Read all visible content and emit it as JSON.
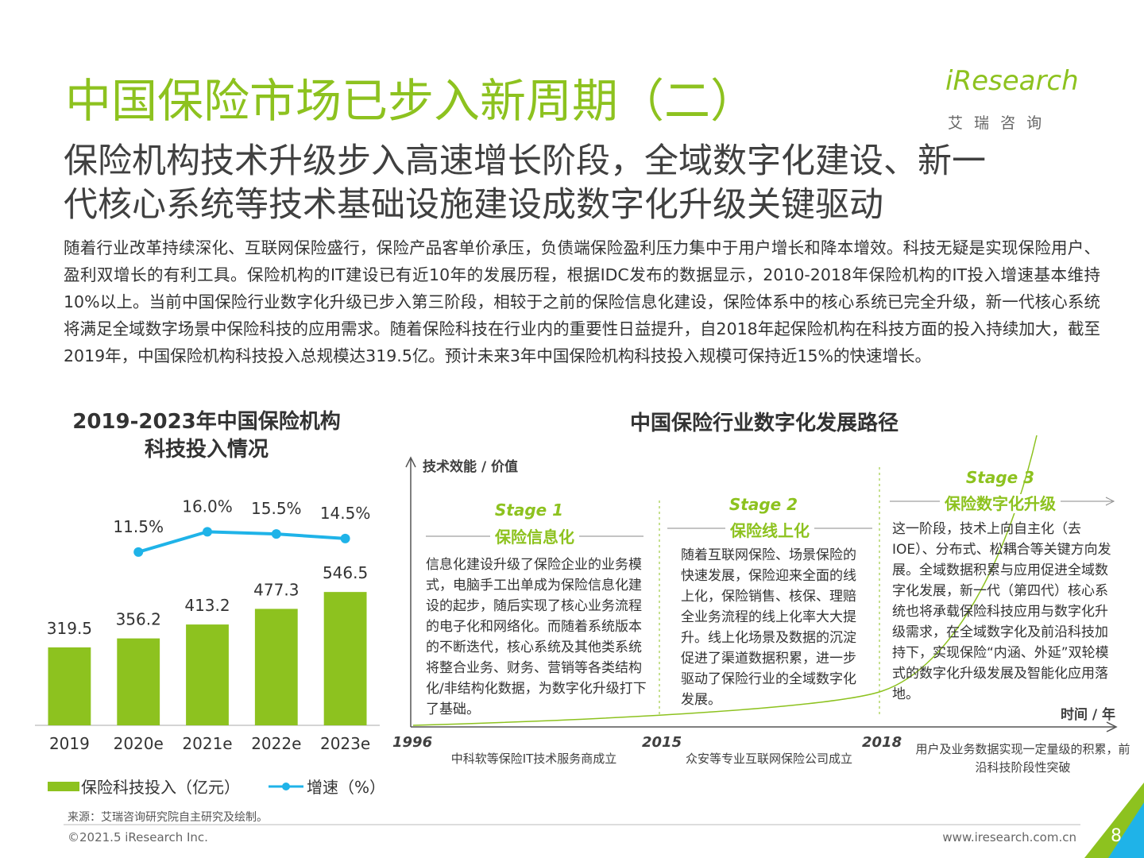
{
  "header": {
    "title": "中国保险市场已步入新周期（二）",
    "subtitle_lines": [
      "保险机构技术升级步入高速增长阶段，全域数字化建设、新一",
      "代核心系统等技术基础设施建设成数字化升级关键驱动"
    ],
    "logo": "iResearch",
    "logo_cn": "艾 瑞 咨 询"
  },
  "paragraph": "随着行业改革持续深化、互联网保险盛行，保险产品客单价承压，负债端保险盈利压力集中于用户增长和降本增效。科技无疑是实现保险用户、盈利双增长的有利工具。保险机构的IT建设已有近10年的发展历程，根据IDC发布的数据显示，2010-2018年保险机构的IT投入增速基本维持10%以上。当前中国保险行业数字化升级已步入第三阶段，相较于之前的保险信息化建设，保险体系中的核心系统已完全升级，新一代核心系统将满足全域数字场景中保险科技的应用需求。随着保险科技在行业内的重要性日益提升，自2018年起保险机构在科技方面的投入持续加大，截至2019年，中国保险机构科技投入总规模达319.5亿。预计未来3年中国保险机构科技投入规模可保持近15%的快速增长。",
  "chart_data": {
    "type": "bar",
    "title_lines": [
      "2019-2023年中国保险机构",
      "科技投入情况"
    ],
    "categories": [
      "2019",
      "2020e",
      "2021e",
      "2022e",
      "2023e"
    ],
    "series": [
      {
        "name": "保险科技投入（亿元）",
        "type": "bar",
        "color": "#8dc21f",
        "values": [
          319.5,
          356.2,
          413.2,
          477.3,
          546.5
        ]
      },
      {
        "name": "增速（%）",
        "type": "line",
        "axis": "y2",
        "color": "#1fb3e8",
        "values": [
          null,
          11.5,
          16.0,
          15.5,
          14.5
        ],
        "value_labels": [
          null,
          "11.5%",
          "16.0%",
          "15.5%",
          "14.5%"
        ]
      }
    ],
    "ylim": [
      0,
      700
    ],
    "y2lim": [
      0,
      30
    ]
  },
  "diagram": {
    "title": "中国保险行业数字化发展路径",
    "y_axis_label": "技术效能 / 价值",
    "x_axis_label": "时间 / 年",
    "stages": [
      {
        "stage": "Stage 1",
        "name": "保险信息化",
        "text": "信息化建设升级了保险企业的业务模式，电脑手工出单成为保险信息化建设的起步，随后实现了核心业务流程的电子化和网络化。而随着系统版本的不断迭代，核心系统及其他类系统将整合业务、财务、营销等各类结构化/非结构化数据，为数字化升级打下了基础。"
      },
      {
        "stage": "Stage 2",
        "name": "保险线上化",
        "text": "随着互联网保险、场景保险的快速发展，保险迎来全面的线上化，保险销售、核保、理赔全业务流程的线上化率大大提升。线上化场景及数据的沉淀促进了渠道数据积累，进一步驱动了保险行业的全域数字化发展。"
      },
      {
        "stage": "Stage 3",
        "name": "保险数字化升级",
        "text": "这一阶段，技术上向自主化（去IOE）、分布式、松耦合等关键方向发展。全域数据积累与应用促进全域数字化发展，新一代（第四代）核心系统也将承载保险科技应用与数字化升级需求，在全域数字化及前沿科技加持下，实现保险“内涵、外延”双轮模式的数字化升级发展及智能化应用落地。"
      }
    ],
    "years": [
      "1996",
      "2015",
      "2018"
    ],
    "events": [
      "中科软等保险IT技术服务商成立",
      "众安等专业互联网保险公司成立",
      "用户及业务数据实现一定量级的积累，前沿科技阶段性突破"
    ]
  },
  "footer": {
    "source": "来源：艾瑞咨询研究院自主研究及绘制。",
    "copyright": "©2021.5 iResearch Inc.",
    "url": "www.iresearch.com.cn",
    "page": "8"
  }
}
